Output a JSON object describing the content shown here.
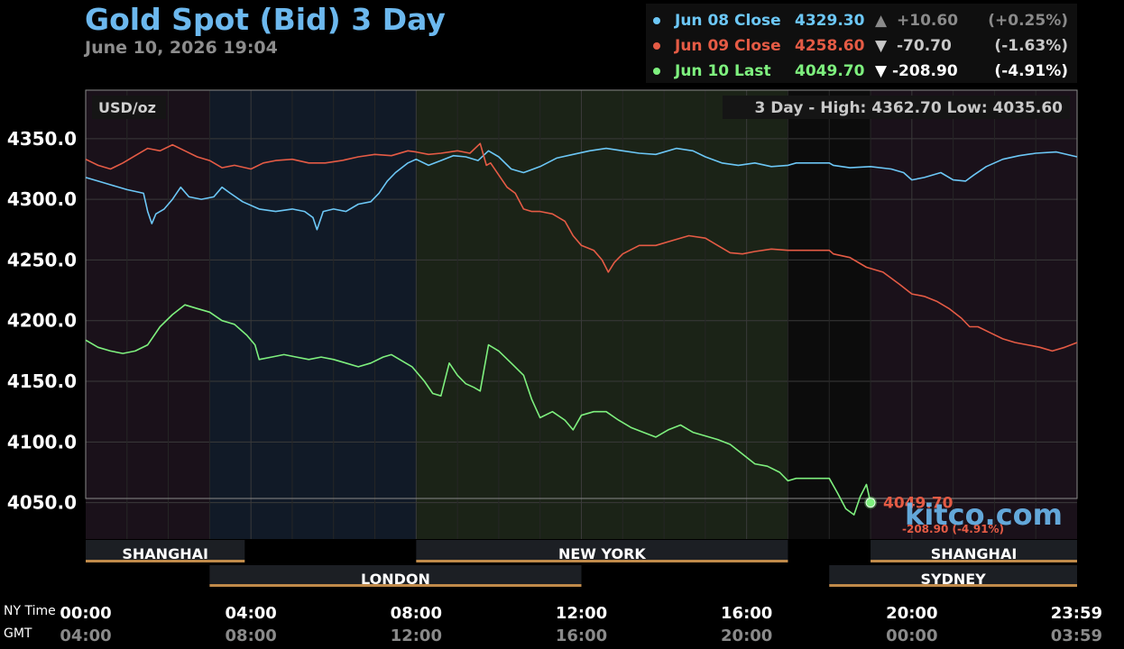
{
  "title": "Gold Spot (Bid) 3 Day",
  "subtitle": "June 10, 2026 19:04",
  "legend": [
    {
      "label": "Jun 08 Close",
      "value": "4329.30",
      "arrow": "▲",
      "change": "+10.60",
      "pct": "(+0.25%)",
      "color": "#6cc7f6",
      "change_color": "#8a8a8a"
    },
    {
      "label": "Jun 09 Close",
      "value": "4258.60",
      "arrow": "▼",
      "change": "-70.70",
      "pct": "(-1.63%)",
      "color": "#e55b45",
      "change_color": "#c8c8c8"
    },
    {
      "label": "Jun 10 Last",
      "value": "4049.70",
      "arrow": "▼",
      "change": "-208.90",
      "pct": "(-4.91%)",
      "color": "#7ef07e",
      "change_color": "#ffffff"
    }
  ],
  "units": "USD/oz",
  "range_label": "3 Day - High: 4362.70  Low: 4035.60",
  "last_label": {
    "value": "4049.70",
    "change": "-208.90 (-4.91%)"
  },
  "watermark": "kitco.com",
  "sessions": [
    {
      "name": "SHANGHAI",
      "start": 0,
      "end": 3.85,
      "row": 0
    },
    {
      "name": "NEW YORK",
      "start": 8.0,
      "end": 17.0,
      "row": 0
    },
    {
      "name": "SHANGHAI",
      "start": 19.0,
      "end": 24,
      "row": 0
    },
    {
      "name": "LONDON",
      "start": 3.0,
      "end": 12.0,
      "row": 1
    },
    {
      "name": "SYDNEY",
      "start": 18.0,
      "end": 24,
      "row": 1
    }
  ],
  "x_row_labels": {
    "ny": "NY Time",
    "gmt": "GMT"
  },
  "chart_data": {
    "type": "line",
    "title": "Gold Spot (Bid) 3 Day",
    "subtitle": "June 10, 2026 19:04",
    "ylabel": "USD/oz",
    "ylim": [
      4020,
      4390
    ],
    "xlim": [
      0,
      24
    ],
    "y_ticks": [
      4050.0,
      4100.0,
      4150.0,
      4200.0,
      4250.0,
      4300.0,
      4350.0
    ],
    "x_ticks": [
      {
        "at": 0,
        "ny": "00:00",
        "gmt": "04:00"
      },
      {
        "at": 4,
        "ny": "04:00",
        "gmt": "08:00"
      },
      {
        "at": 8,
        "ny": "08:00",
        "gmt": "12:00"
      },
      {
        "at": 12,
        "ny": "12:00",
        "gmt": "16:00"
      },
      {
        "at": 16,
        "ny": "16:00",
        "gmt": "20:00"
      },
      {
        "at": 20,
        "ny": "20:00",
        "gmt": "00:00"
      },
      {
        "at": 23.983,
        "ny": "23:59",
        "gmt": "03:59"
      }
    ],
    "grid": true,
    "legend_position": "top-right",
    "high": 4362.7,
    "low": 4035.6,
    "series": [
      {
        "name": "Jun 08 Close",
        "color": "#6cc7f6",
        "points": [
          [
            0,
            4318
          ],
          [
            0.3,
            4315
          ],
          [
            0.6,
            4312
          ],
          [
            1.0,
            4308
          ],
          [
            1.4,
            4305
          ],
          [
            1.5,
            4290
          ],
          [
            1.6,
            4280
          ],
          [
            1.7,
            4288
          ],
          [
            1.9,
            4292
          ],
          [
            2.1,
            4300
          ],
          [
            2.3,
            4310
          ],
          [
            2.5,
            4302
          ],
          [
            2.8,
            4300
          ],
          [
            3.1,
            4302
          ],
          [
            3.3,
            4310
          ],
          [
            3.5,
            4305
          ],
          [
            3.8,
            4298
          ],
          [
            4.2,
            4292
          ],
          [
            4.6,
            4290
          ],
          [
            5.0,
            4292
          ],
          [
            5.3,
            4290
          ],
          [
            5.5,
            4285
          ],
          [
            5.6,
            4275
          ],
          [
            5.75,
            4290
          ],
          [
            6.0,
            4292
          ],
          [
            6.3,
            4290
          ],
          [
            6.6,
            4296
          ],
          [
            6.9,
            4298
          ],
          [
            7.1,
            4305
          ],
          [
            7.3,
            4315
          ],
          [
            7.5,
            4322
          ],
          [
            7.8,
            4330
          ],
          [
            8.0,
            4333
          ],
          [
            8.3,
            4328
          ],
          [
            8.6,
            4332
          ],
          [
            8.9,
            4336
          ],
          [
            9.2,
            4335
          ],
          [
            9.5,
            4332
          ],
          [
            9.75,
            4340
          ],
          [
            10.0,
            4335
          ],
          [
            10.3,
            4325
          ],
          [
            10.6,
            4322
          ],
          [
            11.0,
            4327
          ],
          [
            11.4,
            4334
          ],
          [
            11.8,
            4337
          ],
          [
            12.2,
            4340
          ],
          [
            12.6,
            4342
          ],
          [
            13.0,
            4340
          ],
          [
            13.4,
            4338
          ],
          [
            13.8,
            4337
          ],
          [
            14.3,
            4342
          ],
          [
            14.7,
            4340
          ],
          [
            15.0,
            4335
          ],
          [
            15.4,
            4330
          ],
          [
            15.8,
            4328
          ],
          [
            16.2,
            4330
          ],
          [
            16.6,
            4327
          ],
          [
            17.0,
            4328
          ],
          [
            17.2,
            4330
          ],
          [
            18.0,
            4330
          ],
          [
            18.1,
            4328
          ],
          [
            18.5,
            4326
          ],
          [
            19.0,
            4327
          ],
          [
            19.5,
            4325
          ],
          [
            19.8,
            4322
          ],
          [
            20.0,
            4316
          ],
          [
            20.3,
            4318
          ],
          [
            20.7,
            4322
          ],
          [
            21.0,
            4316
          ],
          [
            21.3,
            4315
          ],
          [
            21.5,
            4320
          ],
          [
            21.8,
            4327
          ],
          [
            22.2,
            4333
          ],
          [
            22.6,
            4336
          ],
          [
            23.0,
            4338
          ],
          [
            23.5,
            4339
          ],
          [
            24,
            4335
          ]
        ]
      },
      {
        "name": "Jun 09 Close",
        "color": "#e55b45",
        "points": [
          [
            0,
            4333
          ],
          [
            0.3,
            4328
          ],
          [
            0.6,
            4325
          ],
          [
            0.9,
            4330
          ],
          [
            1.2,
            4336
          ],
          [
            1.5,
            4342
          ],
          [
            1.8,
            4340
          ],
          [
            2.1,
            4345
          ],
          [
            2.4,
            4340
          ],
          [
            2.7,
            4335
          ],
          [
            3.0,
            4332
          ],
          [
            3.3,
            4326
          ],
          [
            3.6,
            4328
          ],
          [
            4.0,
            4325
          ],
          [
            4.3,
            4330
          ],
          [
            4.6,
            4332
          ],
          [
            5.0,
            4333
          ],
          [
            5.4,
            4330
          ],
          [
            5.8,
            4330
          ],
          [
            6.2,
            4332
          ],
          [
            6.6,
            4335
          ],
          [
            7.0,
            4337
          ],
          [
            7.4,
            4336
          ],
          [
            7.8,
            4340
          ],
          [
            8.0,
            4339
          ],
          [
            8.3,
            4337
          ],
          [
            8.6,
            4338
          ],
          [
            9.0,
            4340
          ],
          [
            9.3,
            4338
          ],
          [
            9.55,
            4346
          ],
          [
            9.7,
            4328
          ],
          [
            9.8,
            4330
          ],
          [
            10.0,
            4320
          ],
          [
            10.2,
            4310
          ],
          [
            10.4,
            4305
          ],
          [
            10.6,
            4292
          ],
          [
            10.8,
            4290
          ],
          [
            11.0,
            4290
          ],
          [
            11.3,
            4288
          ],
          [
            11.6,
            4282
          ],
          [
            11.8,
            4270
          ],
          [
            12.0,
            4262
          ],
          [
            12.3,
            4258
          ],
          [
            12.5,
            4250
          ],
          [
            12.65,
            4240
          ],
          [
            12.8,
            4248
          ],
          [
            13.0,
            4255
          ],
          [
            13.4,
            4262
          ],
          [
            13.8,
            4262
          ],
          [
            14.2,
            4266
          ],
          [
            14.6,
            4270
          ],
          [
            15.0,
            4268
          ],
          [
            15.3,
            4262
          ],
          [
            15.6,
            4256
          ],
          [
            15.9,
            4255
          ],
          [
            16.2,
            4257
          ],
          [
            16.6,
            4259
          ],
          [
            17.0,
            4258
          ],
          [
            18.0,
            4258
          ],
          [
            18.1,
            4255
          ],
          [
            18.5,
            4252
          ],
          [
            18.9,
            4244
          ],
          [
            19.3,
            4240
          ],
          [
            19.7,
            4230
          ],
          [
            20.0,
            4222
          ],
          [
            20.3,
            4220
          ],
          [
            20.6,
            4216
          ],
          [
            20.9,
            4210
          ],
          [
            21.2,
            4202
          ],
          [
            21.4,
            4195
          ],
          [
            21.6,
            4195
          ],
          [
            21.9,
            4190
          ],
          [
            22.2,
            4185
          ],
          [
            22.5,
            4182
          ],
          [
            22.8,
            4180
          ],
          [
            23.1,
            4178
          ],
          [
            23.4,
            4175
          ],
          [
            23.7,
            4178
          ],
          [
            24,
            4182
          ]
        ]
      },
      {
        "name": "Jun 10 Last",
        "color": "#7ef07e",
        "points": [
          [
            0,
            4184
          ],
          [
            0.3,
            4178
          ],
          [
            0.6,
            4175
          ],
          [
            0.9,
            4173
          ],
          [
            1.2,
            4175
          ],
          [
            1.5,
            4180
          ],
          [
            1.8,
            4195
          ],
          [
            2.1,
            4205
          ],
          [
            2.4,
            4213
          ],
          [
            2.7,
            4210
          ],
          [
            3.0,
            4207
          ],
          [
            3.3,
            4200
          ],
          [
            3.6,
            4197
          ],
          [
            3.9,
            4188
          ],
          [
            4.1,
            4180
          ],
          [
            4.2,
            4168
          ],
          [
            4.5,
            4170
          ],
          [
            4.8,
            4172
          ],
          [
            5.1,
            4170
          ],
          [
            5.4,
            4168
          ],
          [
            5.7,
            4170
          ],
          [
            6.0,
            4168
          ],
          [
            6.3,
            4165
          ],
          [
            6.6,
            4162
          ],
          [
            6.9,
            4165
          ],
          [
            7.2,
            4170
          ],
          [
            7.4,
            4172
          ],
          [
            7.6,
            4168
          ],
          [
            7.9,
            4162
          ],
          [
            8.2,
            4150
          ],
          [
            8.4,
            4140
          ],
          [
            8.6,
            4138
          ],
          [
            8.8,
            4165
          ],
          [
            9.0,
            4155
          ],
          [
            9.2,
            4148
          ],
          [
            9.4,
            4145
          ],
          [
            9.55,
            4142
          ],
          [
            9.75,
            4180
          ],
          [
            10.0,
            4175
          ],
          [
            10.3,
            4165
          ],
          [
            10.6,
            4155
          ],
          [
            10.8,
            4135
          ],
          [
            11.0,
            4120
          ],
          [
            11.3,
            4125
          ],
          [
            11.6,
            4118
          ],
          [
            11.8,
            4110
          ],
          [
            12.0,
            4122
          ],
          [
            12.3,
            4125
          ],
          [
            12.6,
            4125
          ],
          [
            12.9,
            4118
          ],
          [
            13.2,
            4112
          ],
          [
            13.5,
            4108
          ],
          [
            13.8,
            4104
          ],
          [
            14.1,
            4110
          ],
          [
            14.4,
            4114
          ],
          [
            14.7,
            4108
          ],
          [
            15.0,
            4105
          ],
          [
            15.3,
            4102
          ],
          [
            15.6,
            4098
          ],
          [
            15.9,
            4090
          ],
          [
            16.2,
            4082
          ],
          [
            16.5,
            4080
          ],
          [
            16.8,
            4075
          ],
          [
            17.0,
            4068
          ],
          [
            17.2,
            4070
          ],
          [
            18.0,
            4070
          ],
          [
            18.2,
            4058
          ],
          [
            18.4,
            4045
          ],
          [
            18.6,
            4040
          ],
          [
            18.75,
            4055
          ],
          [
            18.9,
            4065
          ],
          [
            19.0,
            4050
          ]
        ]
      }
    ]
  }
}
